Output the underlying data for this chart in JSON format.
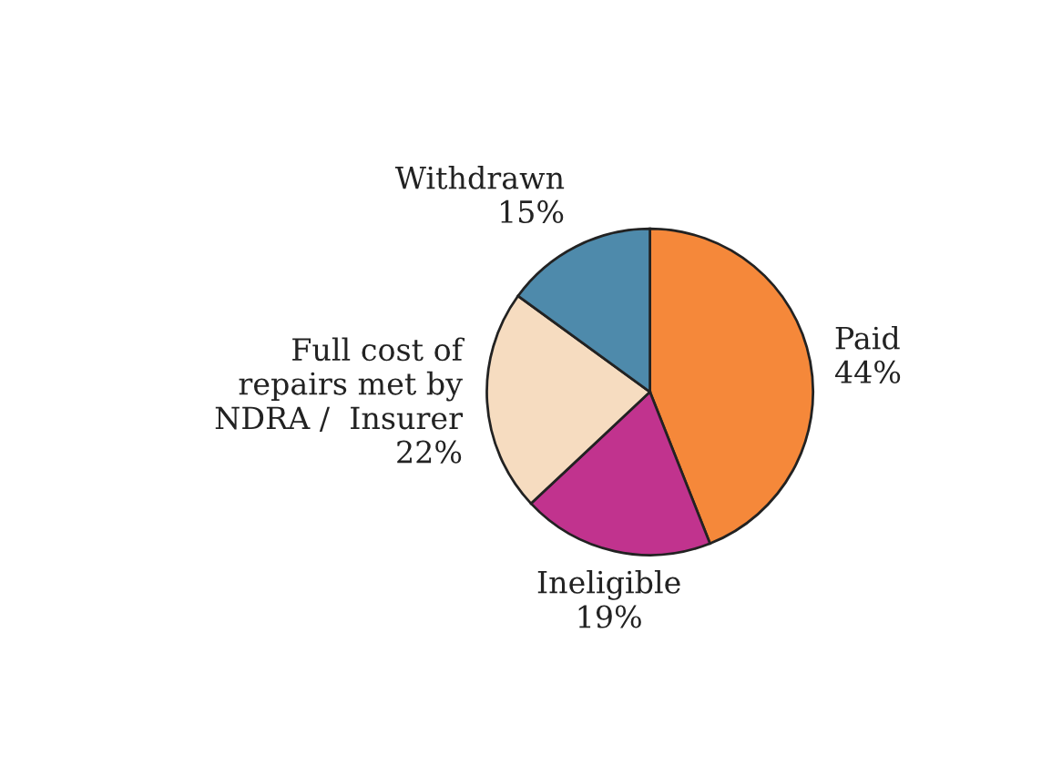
{
  "chart_data": {
    "type": "pie",
    "categories": [
      "Paid",
      "Ineligible",
      "Full cost of\nrepairs met by\nNDRA /  Insurer",
      "Withdrawn"
    ],
    "values": [
      44,
      19,
      22,
      15
    ],
    "colors": [
      "#f5883a",
      "#c1338e",
      "#f6dcc0",
      "#4e8aab"
    ],
    "value_labels": [
      "44%",
      "19%",
      "22%",
      "15%"
    ]
  }
}
